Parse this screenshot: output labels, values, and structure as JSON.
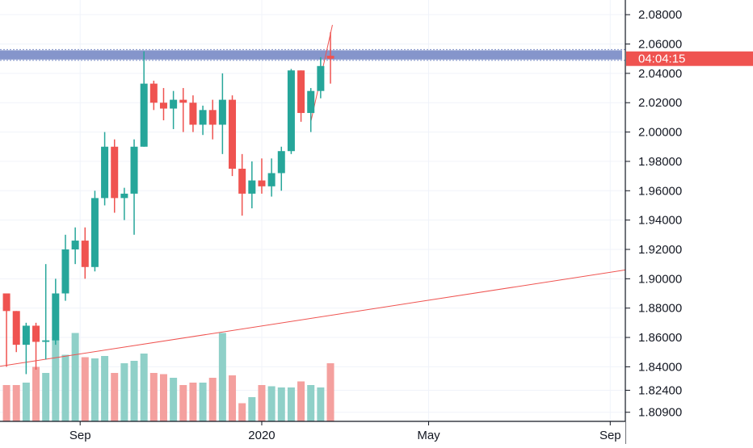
{
  "colors": {
    "up": "#26a69a",
    "down": "#ef5350",
    "up_volume": "#8fd0c8",
    "down_volume": "#f4a09e",
    "zone": "#7e8fc8",
    "trendline": "#ef5350",
    "grid": "#f0f3fa",
    "axis": "#131722",
    "price_tag": "#ef5350"
  },
  "chart_data": {
    "type": "candlestick",
    "title": "",
    "xlabel": "",
    "ylabel": "",
    "ylim": [
      1.8028,
      2.09
    ],
    "price_ticks": [
      {
        "value": 2.08,
        "label": "2.08000"
      },
      {
        "value": 2.06,
        "label": "2.06000"
      },
      {
        "value": 2.04,
        "label": "2.04000"
      },
      {
        "value": 2.02,
        "label": "2.02000"
      },
      {
        "value": 2.0,
        "label": "2.00000"
      },
      {
        "value": 1.98,
        "label": "1.98000"
      },
      {
        "value": 1.96,
        "label": "1.96000"
      },
      {
        "value": 1.94,
        "label": "1.94000"
      },
      {
        "value": 1.92,
        "label": "1.92000"
      },
      {
        "value": 1.9,
        "label": "1.90000"
      },
      {
        "value": 1.88,
        "label": "1.88000"
      },
      {
        "value": 1.86,
        "label": "1.86000"
      },
      {
        "value": 1.84,
        "label": "1.84000"
      },
      {
        "value": 1.824,
        "label": "1.82400"
      },
      {
        "value": 1.809,
        "label": "1.80900"
      }
    ],
    "time_ticks": [
      {
        "index": 7.5,
        "label": "Sep"
      },
      {
        "index": 26,
        "label": "2020"
      },
      {
        "index": 43,
        "label": "May"
      },
      {
        "index": 61.5,
        "label": "Sep"
      }
    ],
    "candles": [
      {
        "o": 1.89,
        "h": 1.89,
        "l": 1.84,
        "c": 1.878,
        "v": 30
      },
      {
        "o": 1.878,
        "h": 1.878,
        "l": 1.85,
        "c": 1.855,
        "v": 30
      },
      {
        "o": 1.855,
        "h": 1.87,
        "l": 1.835,
        "c": 1.868,
        "v": 32
      },
      {
        "o": 1.868,
        "h": 1.87,
        "l": 1.838,
        "c": 1.857,
        "v": 45
      },
      {
        "o": 1.857,
        "h": 1.91,
        "l": 1.845,
        "c": 1.858,
        "v": 40
      },
      {
        "o": 1.858,
        "h": 1.9,
        "l": 1.855,
        "c": 1.89,
        "v": 68
      },
      {
        "o": 1.89,
        "h": 1.93,
        "l": 1.885,
        "c": 1.92,
        "v": 55
      },
      {
        "o": 1.92,
        "h": 1.935,
        "l": 1.91,
        "c": 1.926,
        "v": 73
      },
      {
        "o": 1.926,
        "h": 1.935,
        "l": 1.9,
        "c": 1.908,
        "v": 53
      },
      {
        "o": 1.908,
        "h": 1.96,
        "l": 1.905,
        "c": 1.955,
        "v": 52
      },
      {
        "o": 1.955,
        "h": 2.0,
        "l": 1.95,
        "c": 1.99,
        "v": 54
      },
      {
        "o": 1.99,
        "h": 1.995,
        "l": 1.945,
        "c": 1.955,
        "v": 40
      },
      {
        "o": 1.955,
        "h": 1.962,
        "l": 1.94,
        "c": 1.958,
        "v": 48
      },
      {
        "o": 1.958,
        "h": 1.995,
        "l": 1.93,
        "c": 1.99,
        "v": 50
      },
      {
        "o": 1.99,
        "h": 2.055,
        "l": 1.99,
        "c": 2.033,
        "v": 56
      },
      {
        "o": 2.033,
        "h": 2.035,
        "l": 2.015,
        "c": 2.02,
        "v": 40
      },
      {
        "o": 2.02,
        "h": 2.03,
        "l": 2.008,
        "c": 2.016,
        "v": 39
      },
      {
        "o": 2.016,
        "h": 2.028,
        "l": 2.002,
        "c": 2.022,
        "v": 36
      },
      {
        "o": 2.022,
        "h": 2.03,
        "l": 2.0,
        "c": 2.02,
        "v": 30
      },
      {
        "o": 2.02,
        "h": 2.025,
        "l": 2.0,
        "c": 2.005,
        "v": 32
      },
      {
        "o": 2.005,
        "h": 2.018,
        "l": 1.998,
        "c": 2.015,
        "v": 32
      },
      {
        "o": 2.015,
        "h": 2.022,
        "l": 1.995,
        "c": 2.005,
        "v": 36
      },
      {
        "o": 2.005,
        "h": 2.04,
        "l": 1.985,
        "c": 2.022,
        "v": 73
      },
      {
        "o": 2.022,
        "h": 2.025,
        "l": 1.97,
        "c": 1.975,
        "v": 38
      },
      {
        "o": 1.975,
        "h": 1.985,
        "l": 1.943,
        "c": 1.958,
        "v": 15
      },
      {
        "o": 1.958,
        "h": 1.98,
        "l": 1.948,
        "c": 1.967,
        "v": 20
      },
      {
        "o": 1.967,
        "h": 1.982,
        "l": 1.958,
        "c": 1.963,
        "v": 30
      },
      {
        "o": 1.963,
        "h": 1.982,
        "l": 1.956,
        "c": 1.972,
        "v": 29
      },
      {
        "o": 1.972,
        "h": 1.99,
        "l": 1.96,
        "c": 1.987,
        "v": 28
      },
      {
        "o": 1.987,
        "h": 2.043,
        "l": 1.985,
        "c": 2.042,
        "v": 28
      },
      {
        "o": 2.042,
        "h": 2.042,
        "l": 2.007,
        "c": 2.013,
        "v": 33
      },
      {
        "o": 2.013,
        "h": 2.03,
        "l": 2.0,
        "c": 2.028,
        "v": 30
      },
      {
        "o": 2.028,
        "h": 2.051,
        "l": 2.023,
        "c": 2.045,
        "v": 28
      },
      {
        "o": 2.052,
        "h": 2.068,
        "l": 2.033,
        "c": 2.05,
        "v": 48
      }
    ],
    "zone": {
      "top": 2.0557,
      "bottom": 2.0494
    },
    "trendlines": [
      {
        "from": {
          "index": -1,
          "value": 1.84
        },
        "to": {
          "index": 64,
          "value": 1.907
        }
      },
      {
        "from": {
          "index": 31,
          "value": 2.007
        },
        "to": {
          "index": 33.2,
          "value": 2.073
        }
      }
    ],
    "last_price": 2.05,
    "countdown": "04:04:15"
  }
}
